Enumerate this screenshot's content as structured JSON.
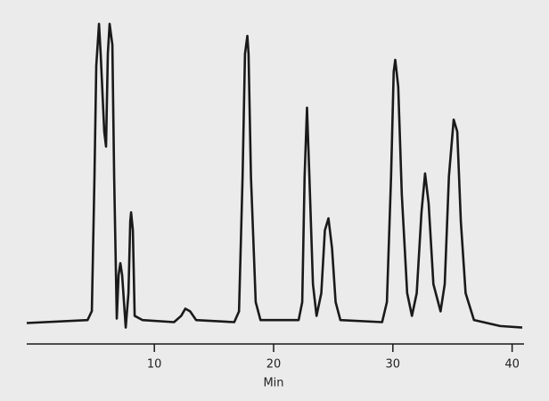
{
  "chart_data": {
    "type": "line",
    "xlabel": "Min",
    "x": [
      -0.7,
      4.4,
      4.76,
      4.98,
      5.13,
      5.36,
      5.5,
      5.8,
      5.95,
      6.1,
      6.25,
      6.48,
      6.63,
      6.85,
      7.0,
      7.15,
      7.3,
      7.6,
      7.83,
      7.98,
      8.05,
      8.2,
      8.35,
      9.0,
      11.65,
      12.25,
      12.6,
      13.0,
      13.5,
      16.7,
      17.1,
      17.4,
      17.6,
      17.8,
      17.9,
      18.1,
      18.5,
      18.9,
      22.1,
      22.4,
      22.6,
      22.8,
      23.0,
      23.3,
      23.6,
      24.0,
      24.3,
      24.6,
      24.9,
      25.2,
      25.6,
      29.1,
      29.5,
      29.85,
      30.07,
      30.2,
      30.45,
      30.75,
      31.2,
      31.6,
      32.0,
      32.4,
      32.7,
      33.0,
      33.4,
      34.0,
      34.35,
      34.7,
      35.1,
      35.4,
      35.7,
      36.1,
      36.8,
      39.0,
      40.85
    ],
    "series": [
      {
        "color": "#1a1a1a",
        "values": [
          0,
          1,
          4,
          49,
          86,
          100,
          90,
          64,
          59,
          90,
          100,
          93,
          49,
          1.5,
          16,
          20,
          16,
          -1.5,
          10,
          34,
          37,
          31,
          2.4,
          1,
          0.3,
          2.4,
          4.8,
          3.9,
          1,
          0.3,
          3.9,
          49,
          90,
          96,
          90,
          49,
          7,
          1,
          1,
          7,
          49,
          72,
          49,
          13,
          2.4,
          10,
          31,
          35,
          25,
          7,
          1,
          0.3,
          7,
          49,
          84,
          88,
          79,
          43,
          10,
          2.4,
          10,
          37,
          50,
          40,
          13,
          3.9,
          13,
          49,
          68,
          64,
          34,
          10,
          1,
          -1,
          -1.5
        ]
      }
    ],
    "xlim": [
      -0.7,
      41
    ],
    "xticks": [
      10,
      20,
      30,
      40
    ],
    "ylim": [
      -7,
      108
    ]
  }
}
